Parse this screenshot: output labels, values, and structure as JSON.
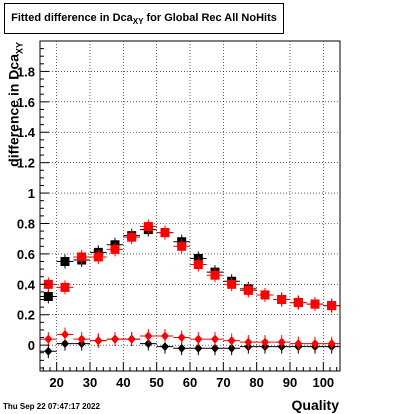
{
  "title": {
    "main": "Fitted difference in Dca",
    "sub": "XY",
    "suffix": " for Global Rec All NoHits"
  },
  "ylabel": {
    "main": "difference in Dca",
    "sub": "XY"
  },
  "xlabel": "Quality",
  "datestamp": "Thu Sep 22 07:47:17 2022",
  "chart_data": {
    "type": "scatter",
    "xlim": [
      15,
      105
    ],
    "ylim": [
      -0.17,
      2.0
    ],
    "xticks": [
      20,
      30,
      40,
      50,
      60,
      70,
      80,
      90,
      100
    ],
    "yticks": [
      0,
      0.2,
      0.4,
      0.6,
      0.8,
      1,
      1.2,
      1.4,
      1.6,
      1.8
    ],
    "ytick_labels": [
      "0",
      "0.2",
      "0.4",
      "0.6",
      "0.8",
      "1",
      "1.2",
      "1.4",
      "1.6",
      "1.8"
    ],
    "grid": true,
    "x": [
      17.5,
      22.5,
      27.5,
      32.5,
      37.5,
      42.5,
      47.5,
      52.5,
      57.5,
      62.5,
      67.5,
      72.5,
      77.5,
      82.5,
      87.5,
      92.5,
      97.5,
      102.5
    ],
    "series": [
      {
        "marker": "square",
        "color": "#000000",
        "values": [
          0.32,
          0.55,
          0.56,
          0.61,
          0.66,
          0.72,
          0.76,
          0.74,
          0.68,
          0.57,
          0.48,
          0.42,
          0.37,
          0.33,
          0.3,
          0.28,
          0.27,
          0.26
        ]
      },
      {
        "marker": "square",
        "color": "#ff0000",
        "values": [
          0.4,
          0.38,
          0.58,
          0.58,
          0.63,
          0.71,
          0.78,
          0.74,
          0.65,
          0.53,
          0.46,
          0.4,
          0.36,
          0.33,
          0.3,
          0.28,
          0.27,
          0.26
        ]
      },
      {
        "marker": "diamond",
        "color": "#000000",
        "values": [
          -0.04,
          0.01,
          0.01,
          0.03,
          0.04,
          0.04,
          0.01,
          -0.01,
          -0.02,
          -0.02,
          -0.02,
          -0.02,
          -0.01,
          -0.01,
          -0.01,
          -0.01,
          -0.01,
          -0.01
        ]
      },
      {
        "marker": "diamond",
        "color": "#ff0000",
        "values": [
          0.04,
          0.07,
          0.04,
          0.03,
          0.04,
          0.04,
          0.06,
          0.06,
          0.05,
          0.04,
          0.04,
          0.03,
          0.02,
          0.02,
          0.02,
          0.01,
          0.01,
          0.01
        ]
      }
    ]
  }
}
